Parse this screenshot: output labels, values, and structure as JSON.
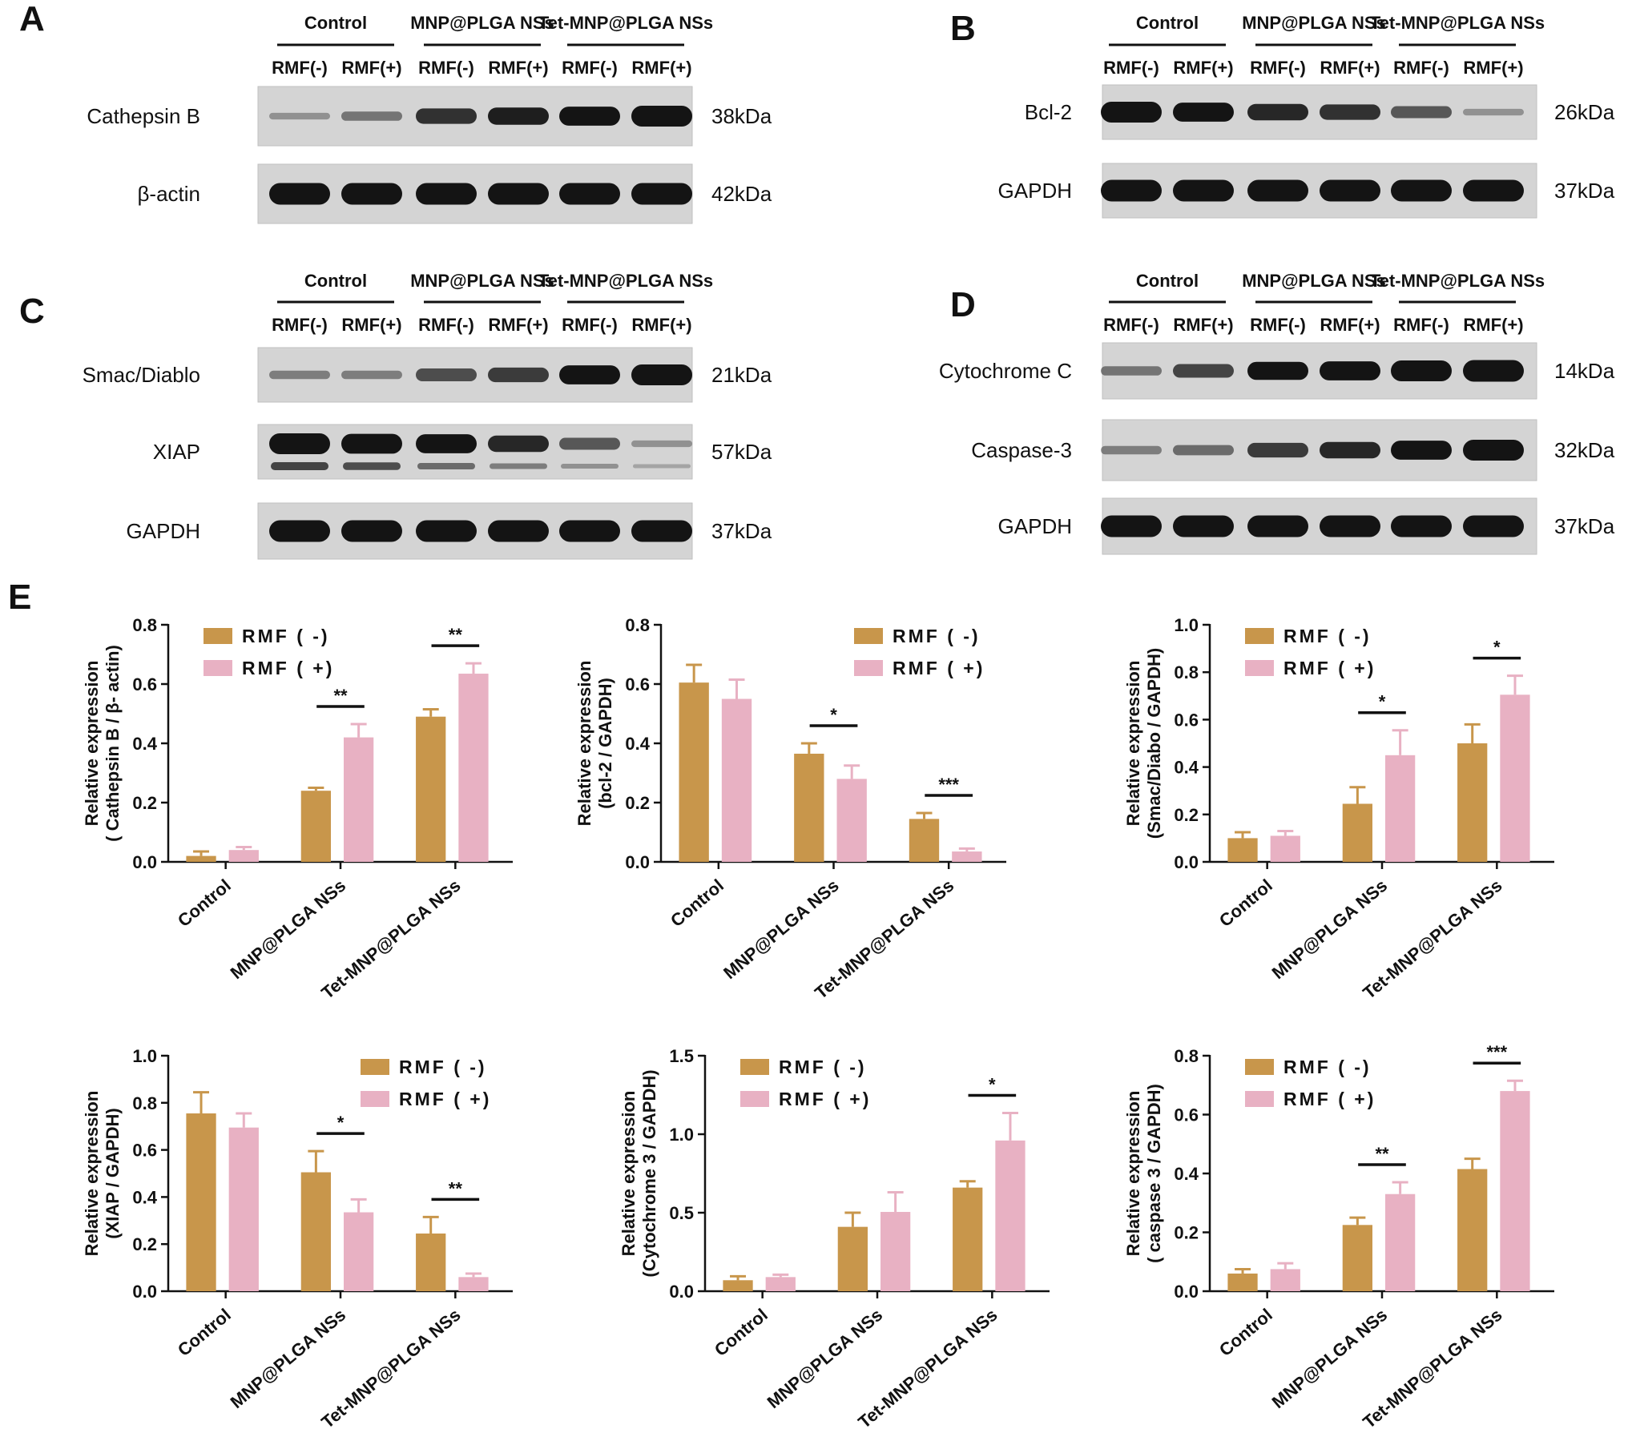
{
  "colors": {
    "rmf_minus": "#c8964b",
    "rmf_plus": "#e8b1c3",
    "blot_bg": "#d4d4d4",
    "band": "#141414",
    "text": "#111111"
  },
  "group_labels": [
    "Control",
    "MNP@PLGA NSs",
    "Tet-MNP@PLGA NSs"
  ],
  "lane_labels": [
    "RMF(-)",
    "RMF(+)",
    "RMF(-)",
    "RMF(+)",
    "RMF(-)",
    "RMF(+)"
  ],
  "blot_panels": [
    {
      "letter": "A",
      "rows": [
        {
          "protein": "Cathepsin B",
          "size": "38kDa",
          "intensity": [
            0.15,
            0.3,
            0.65,
            0.75,
            0.85,
            0.95
          ],
          "secondary": []
        },
        {
          "protein": "β-actin",
          "size": "42kDa",
          "intensity": [
            1,
            1,
            1,
            1,
            1,
            1
          ],
          "secondary": []
        }
      ]
    },
    {
      "letter": "B",
      "rows": [
        {
          "protein": "Bcl-2",
          "size": "26kDa",
          "intensity": [
            0.95,
            0.85,
            0.7,
            0.65,
            0.45,
            0.15
          ],
          "secondary": []
        },
        {
          "protein": "GAPDH",
          "size": "37kDa",
          "intensity": [
            1,
            1,
            1,
            1,
            1,
            1
          ],
          "secondary": []
        }
      ]
    },
    {
      "letter": "C",
      "rows": [
        {
          "protein": "Smac/Diablo",
          "size": "21kDa",
          "intensity": [
            0.25,
            0.25,
            0.5,
            0.6,
            0.85,
            0.95
          ],
          "secondary": []
        },
        {
          "protein": "XIAP",
          "size": "57kDa",
          "intensity": [
            0.95,
            0.9,
            0.85,
            0.7,
            0.45,
            0.15
          ],
          "secondary": [
            0.6,
            0.55,
            0.4,
            0.3,
            0.2,
            0.1
          ]
        },
        {
          "protein": "GAPDH",
          "size": "37kDa",
          "intensity": [
            1,
            1,
            1,
            1,
            1,
            1
          ],
          "secondary": []
        }
      ]
    },
    {
      "letter": "D",
      "rows": [
        {
          "protein": "Cytochrome C",
          "size": "14kDa",
          "intensity": [
            0.3,
            0.55,
            0.8,
            0.85,
            0.95,
            1.0
          ],
          "secondary": []
        },
        {
          "protein": "Caspase-3",
          "size": "32kDa",
          "intensity": [
            0.25,
            0.35,
            0.6,
            0.7,
            0.85,
            0.95
          ],
          "secondary": []
        },
        {
          "protein": "GAPDH",
          "size": "37kDa",
          "intensity": [
            1,
            1,
            1,
            1,
            1,
            1
          ],
          "secondary": []
        }
      ]
    }
  ],
  "panel_e_letter": "E",
  "chart_data": [
    {
      "type": "bar",
      "categories": [
        "Control",
        "MNP@PLGA NSs",
        "Tet-MNP@PLGA NSs"
      ],
      "ylabel_lines": [
        "Relative expression",
        "( Cathepsin B / β- actin)"
      ],
      "ylim": [
        0,
        0.8
      ],
      "yticks": [
        "0.0",
        "0.2",
        "0.4",
        "0.6",
        "0.8"
      ],
      "legend": "top-left",
      "series": [
        {
          "name": "RMF ( -)",
          "values": [
            0.02,
            0.24,
            0.49
          ],
          "errors": [
            0.015,
            0.01,
            0.025
          ]
        },
        {
          "name": "RMF ( +)",
          "values": [
            0.04,
            0.42,
            0.635
          ],
          "errors": [
            0.01,
            0.045,
            0.035
          ]
        }
      ],
      "significance": [
        {
          "group": 1,
          "label": "**"
        },
        {
          "group": 2,
          "label": "**"
        }
      ]
    },
    {
      "type": "bar",
      "categories": [
        "Control",
        "MNP@PLGA NSs",
        "Tet-MNP@PLGA NSs"
      ],
      "ylabel_lines": [
        "Relative expression",
        "(bcl-2 / GAPDH)"
      ],
      "ylim": [
        0,
        0.8
      ],
      "yticks": [
        "0.0",
        "0.2",
        "0.4",
        "0.6",
        "0.8"
      ],
      "legend": "top-right",
      "series": [
        {
          "name": "RMF ( -)",
          "values": [
            0.605,
            0.365,
            0.145
          ],
          "errors": [
            0.06,
            0.035,
            0.02
          ]
        },
        {
          "name": "RMF ( +)",
          "values": [
            0.55,
            0.28,
            0.035
          ],
          "errors": [
            0.065,
            0.045,
            0.01
          ]
        }
      ],
      "significance": [
        {
          "group": 1,
          "label": "*"
        },
        {
          "group": 2,
          "label": "***"
        }
      ]
    },
    {
      "type": "bar",
      "categories": [
        "Control",
        "MNP@PLGA NSs",
        "Tet-MNP@PLGA NSs"
      ],
      "ylabel_lines": [
        "Relative expression",
        "(Smac/Diabo / GAPDH)"
      ],
      "ylim": [
        0,
        1.0
      ],
      "yticks": [
        "0.0",
        "0.2",
        "0.4",
        "0.6",
        "0.8",
        "1.0"
      ],
      "legend": "top-left",
      "series": [
        {
          "name": "RMF ( -)",
          "values": [
            0.1,
            0.245,
            0.5
          ],
          "errors": [
            0.025,
            0.07,
            0.08
          ]
        },
        {
          "name": "RMF ( +)",
          "values": [
            0.11,
            0.45,
            0.705
          ],
          "errors": [
            0.02,
            0.105,
            0.08
          ]
        }
      ],
      "significance": [
        {
          "group": 1,
          "label": "*"
        },
        {
          "group": 2,
          "label": "*"
        }
      ]
    },
    {
      "type": "bar",
      "categories": [
        "Control",
        "MNP@PLGA NSs",
        "Tet-MNP@PLGA NSs"
      ],
      "ylabel_lines": [
        "Relative expression",
        "(XIAP / GAPDH)"
      ],
      "ylim": [
        0,
        1.0
      ],
      "yticks": [
        "0.0",
        "0.2",
        "0.4",
        "0.6",
        "0.8",
        "1.0"
      ],
      "legend": "top-right",
      "series": [
        {
          "name": "RMF ( -)",
          "values": [
            0.755,
            0.505,
            0.245
          ],
          "errors": [
            0.09,
            0.09,
            0.07
          ]
        },
        {
          "name": "RMF ( +)",
          "values": [
            0.695,
            0.335,
            0.06
          ],
          "errors": [
            0.06,
            0.055,
            0.015
          ]
        }
      ],
      "significance": [
        {
          "group": 1,
          "label": "*"
        },
        {
          "group": 2,
          "label": "**"
        }
      ]
    },
    {
      "type": "bar",
      "categories": [
        "Control",
        "MNP@PLGA NSs",
        "Tet-MNP@PLGA NSs"
      ],
      "ylabel_lines": [
        "Relative expression",
        "(Cytochrome 3 / GAPDH)"
      ],
      "ylim": [
        0,
        1.5
      ],
      "yticks": [
        "0.0",
        "0.5",
        "1.0",
        "1.5"
      ],
      "legend": "top-left",
      "series": [
        {
          "name": "RMF ( -)",
          "values": [
            0.07,
            0.41,
            0.66
          ],
          "errors": [
            0.025,
            0.09,
            0.04
          ]
        },
        {
          "name": "RMF ( +)",
          "values": [
            0.09,
            0.505,
            0.96
          ],
          "errors": [
            0.015,
            0.125,
            0.175
          ]
        }
      ],
      "significance": [
        {
          "group": 2,
          "label": "*"
        }
      ]
    },
    {
      "type": "bar",
      "categories": [
        "Control",
        "MNP@PLGA NSs",
        "Tet-MNP@PLGA NSs"
      ],
      "ylabel_lines": [
        "Relative expression",
        "( caspase 3 / GAPDH)"
      ],
      "ylim": [
        0,
        0.8
      ],
      "yticks": [
        "0.0",
        "0.2",
        "0.4",
        "0.6",
        "0.8"
      ],
      "legend": "top-left",
      "series": [
        {
          "name": "RMF ( -)",
          "values": [
            0.06,
            0.225,
            0.415
          ],
          "errors": [
            0.015,
            0.025,
            0.035
          ]
        },
        {
          "name": "RMF ( +)",
          "values": [
            0.075,
            0.33,
            0.68
          ],
          "errors": [
            0.02,
            0.04,
            0.035
          ]
        }
      ],
      "significance": [
        {
          "group": 1,
          "label": "**"
        },
        {
          "group": 2,
          "label": "***"
        }
      ]
    }
  ]
}
